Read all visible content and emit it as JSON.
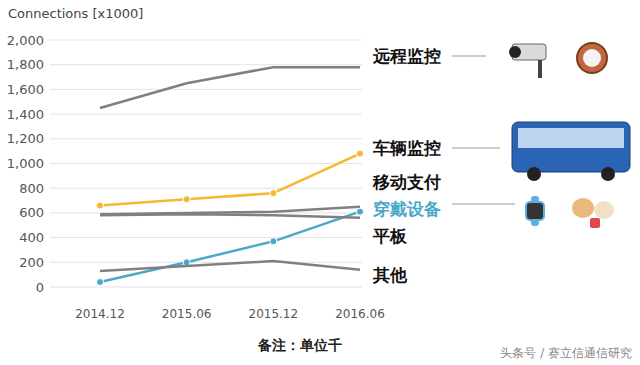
{
  "chart_data": {
    "type": "line",
    "y_label": "Connections [x1000]",
    "categories": [
      "2014.12",
      "2015.06",
      "2015.12",
      "2016.06"
    ],
    "series": [
      {
        "name": "远程监控",
        "color": "#808080",
        "marker": "none",
        "values": [
          1450,
          1650,
          1780,
          1780
        ]
      },
      {
        "name": "车辆监控",
        "color": "#f5b82e",
        "marker": "circle",
        "values": [
          660,
          710,
          760,
          1080
        ]
      },
      {
        "name": "移动支付",
        "color": "#808080",
        "marker": "none",
        "values": [
          590,
          600,
          610,
          650
        ]
      },
      {
        "name": "穿戴设备",
        "color": "#4aa8c8",
        "marker": "circle",
        "values": [
          40,
          200,
          370,
          610
        ]
      },
      {
        "name": "平板",
        "color": "#808080",
        "marker": "none",
        "values": [
          580,
          590,
          580,
          560
        ]
      },
      {
        "name": "其他",
        "color": "#808080",
        "marker": "none",
        "values": [
          130,
          170,
          210,
          140
        ]
      }
    ],
    "ylim": [
      0,
      2000
    ],
    "yticks": [
      0,
      200,
      400,
      600,
      800,
      {
        "value": 1000,
        "label": "1,000"
      },
      {
        "value": 1200,
        "label": "1,200"
      },
      {
        "value": 1400,
        "label": "1,400"
      },
      {
        "value": 1600,
        "label": "1,600"
      },
      {
        "value": 1800,
        "label": "1,800"
      },
      {
        "value": 2000,
        "label": "2,000"
      }
    ],
    "grid": true,
    "annotations": [
      "备注：单位千",
      "头条号 / 赛立信通信研究"
    ]
  }
}
